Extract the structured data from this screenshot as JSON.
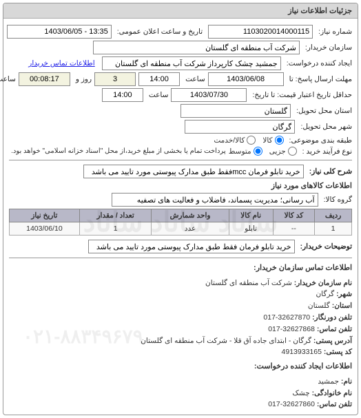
{
  "panel": {
    "title": "جزئیات اطلاعات نیاز"
  },
  "fields": {
    "request_no_label": "شماره نیاز:",
    "request_no": "1103020014000115",
    "announce_label": "تاریخ و ساعت اعلان عمومی:",
    "announce": "13:35 - 1403/06/05",
    "buyer_label": "سازمان خریدار:",
    "buyer": "شرکت آب منطقه ای گلستان",
    "creator_label": "ایجاد کننده درخواست:",
    "creator": "جمشید چشک کارپرداز شرکت آب منطقه ای گلستان",
    "contact_link": "اطلاعات تماس خریدار",
    "deadline_label": "مهلت ارسال پاسخ: تا",
    "deadline_date": "1403/06/08",
    "time_label": "ساعت",
    "deadline_time": "14:00",
    "days_label": "روز و",
    "days_count": "3",
    "remain_label": "ساعت باقی مانده",
    "remain_time": "00:08:17",
    "valid_label": "حداقل تاریخ اعتبار قیمت: تا تاریخ:",
    "valid_date": "1403/07/30",
    "valid_time": "14:00",
    "province_label": "استان محل تحویل:",
    "province": "گلستان",
    "city_label": "شهر محل تحویل:",
    "city": "گرگان",
    "subject_group_label": "طبقه بندی موضوعی:",
    "subject_goods": "کالا",
    "subject_service": "کالا/خدمت",
    "buy_process_label": "نوع فرآیند خرید :",
    "buy_small": "جزیی",
    "buy_medium": "متوسط",
    "buy_note": "پرداخت تمام یا بخشی از مبلغ خرید،از محل \"اسناد خزانه اسلامی\" خواهد بود.",
    "desc_label": "شرح کلی نیاز:",
    "desc_value": "خرید تابلو فرمان mccفقط طبق مدارک پیوستی مورد تایید می باشد",
    "goods_section": "اطلاعات کالاهای مورد نیاز",
    "goods_group_label": "گروه کالا:",
    "goods_group": "آب رسانی؛ مدیریت پسماند، فاضلاب و فعالیت های تصفیه"
  },
  "table": {
    "columns": [
      "ردیف",
      "کد کالا",
      "نام کالا",
      "واحد شمارش",
      "تعداد / مقدار",
      "تاریخ نیاز"
    ],
    "rows": [
      [
        "1",
        "--",
        "تابلو",
        "عدد",
        "1",
        "1403/06/10"
      ]
    ]
  },
  "buyer_notes": {
    "label": "توضیحات خریدار:",
    "text": "خرید تابلو فرمان فقط طبق مدارک پیوستی مورد تایید می باشد"
  },
  "contact": {
    "section": "اطلاعات تماس سازمان خریدار:",
    "org_label": "نام سازمان خریدار:",
    "org": "شرکت آب منطقه ای گلستان",
    "city_label": "شهر:",
    "city": "گرگان",
    "province_label": "استان:",
    "province": "گلستان",
    "fax_label": "تلفن دورنگار:",
    "fax": "32627870-017",
    "phone_label": "تلفن تماس:",
    "phone": "32627868-017",
    "address_label": "آدرس پستی:",
    "address": "گرگان - ابتدای جاده آق قلا - شرکت آب منطقه ای گلستان",
    "postcode_label": "کد پستی:",
    "postcode": "4913933165",
    "creator_section": "اطلاعات ایجاد کننده درخواست:",
    "fname_label": "نام:",
    "fname": "جمشید",
    "lname_label": "نام خانوادگی:",
    "lname": "چشک",
    "cphone_label": "تلفن تماس:",
    "cphone": "32627860-017",
    "big_phone": "۰۲۱-۸۸۳۴۹۶۷۹"
  },
  "watermark": "ساناد ساناد ساناد"
}
